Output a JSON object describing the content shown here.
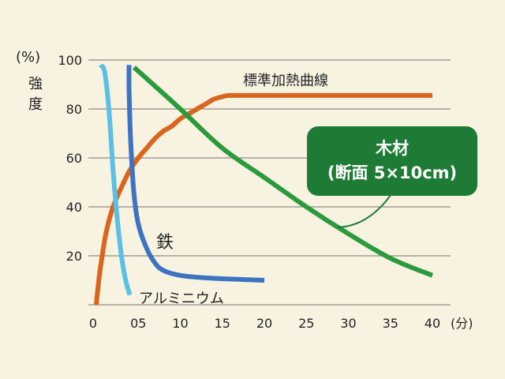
{
  "chart_data": {
    "type": "line",
    "y_unit": "(%)",
    "ylabel": [
      "強",
      "度"
    ],
    "x_unit": "(分)",
    "ylim": [
      0,
      100
    ],
    "xlim": [
      0,
      40
    ],
    "yticks": [
      "20",
      "40",
      "60",
      "80",
      "100"
    ],
    "xticks": [
      "0",
      "05",
      "10",
      "15",
      "20",
      "25",
      "30",
      "35",
      "40"
    ],
    "grid": true,
    "colors": {
      "background": "#f8f3e1",
      "grid": "#8a8a8a",
      "標準加熱曲線": "#d9651f",
      "木材": "#2a9a3d",
      "鉄": "#3e73c2",
      "アルミニウム": "#5bbfe6",
      "box": "#1e7b36"
    },
    "series": [
      {
        "name": "標準加熱曲線",
        "x": [
          0,
          0.3,
          0.7,
          1.2,
          2,
          3,
          4,
          5,
          6,
          7,
          8,
          9,
          10,
          11,
          12,
          13,
          14,
          15,
          16,
          20,
          30,
          40
        ],
        "y": [
          0,
          10,
          20,
          30,
          40,
          48,
          55,
          60,
          64,
          68,
          71,
          73,
          76,
          78,
          80,
          82,
          84,
          85,
          85.5,
          85.5,
          85.5,
          85.5
        ]
      },
      {
        "name": "木材",
        "x": [
          4.5,
          10,
          15,
          20,
          25,
          30,
          35,
          40
        ],
        "y": [
          97,
          80,
          64,
          52,
          40,
          29,
          19,
          12
        ]
      },
      {
        "name": "鉄",
        "x": [
          3.9,
          3.9,
          4.0,
          4.2,
          4.5,
          5,
          6,
          7,
          8,
          10,
          13,
          16,
          20
        ],
        "y": [
          98,
          88,
          75,
          60,
          45,
          33,
          23,
          17,
          14,
          12,
          11,
          10.5,
          10
        ]
      },
      {
        "name": "アルミニウム",
        "x": [
          0.5,
          1,
          1.5,
          2,
          2.5,
          3,
          3.5,
          4
        ],
        "y": [
          98,
          95,
          80,
          55,
          35,
          20,
          10,
          4
        ]
      }
    ],
    "annotations": {
      "standard": "標準加熱曲線",
      "wood_line1": "木材",
      "wood_line2": "(断面 5×10cm)",
      "iron": "鉄",
      "aluminum": "アルミニウム"
    }
  }
}
